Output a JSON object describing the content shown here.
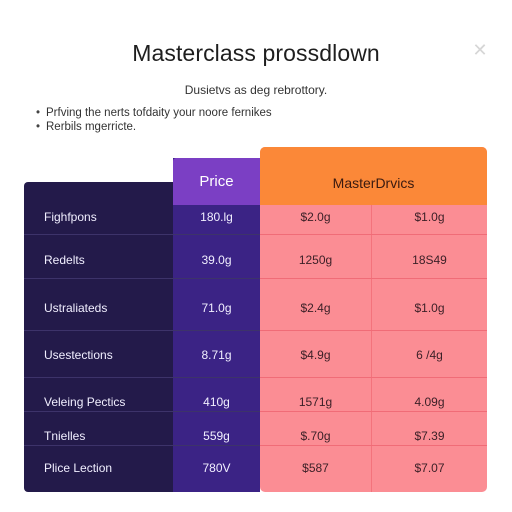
{
  "dialog": {
    "title": "Masterclass prossdlown",
    "subtitle": "Dusietvs as deg rebrottory.",
    "close_icon": "✕"
  },
  "bullets": [
    "Prfving the nerts tofdaity your noore fernikes",
    "Rerbils mgerricte."
  ],
  "table": {
    "header_price": "Price",
    "header_master": "MasterDrvics",
    "rows": [
      {
        "label": "Fighfpons",
        "price": "180.lg",
        "m1": "$2.0g",
        "m2": "$1.0g"
      },
      {
        "label": "Redelts",
        "price": "39.0g",
        "m1": "1250g",
        "m2": "18S49"
      },
      {
        "label": "Ustraliateds",
        "price": "71.0g",
        "m1": "$2.4g",
        "m2": "$1.0g"
      },
      {
        "label": "Usestections",
        "price": "8.71g",
        "m1": "$4.9g",
        "m2": "6 /4g"
      },
      {
        "label": "Veleing Pectics",
        "price": "410g",
        "m1": "1571g",
        "m2": "4.09g"
      },
      {
        "label": "Tnielles",
        "price": "559g",
        "m1": "$.70g",
        "m2": "$7.39"
      },
      {
        "label": "Plice Lection",
        "price": "780V",
        "m1": "$587",
        "m2": "$7.07"
      }
    ]
  },
  "colors": {
    "label_column": "#231a4a",
    "price_column": "#3b2385",
    "price_header": "#7b3fc4",
    "master_header": "#fb8838",
    "master_body": "#fb8d94"
  }
}
